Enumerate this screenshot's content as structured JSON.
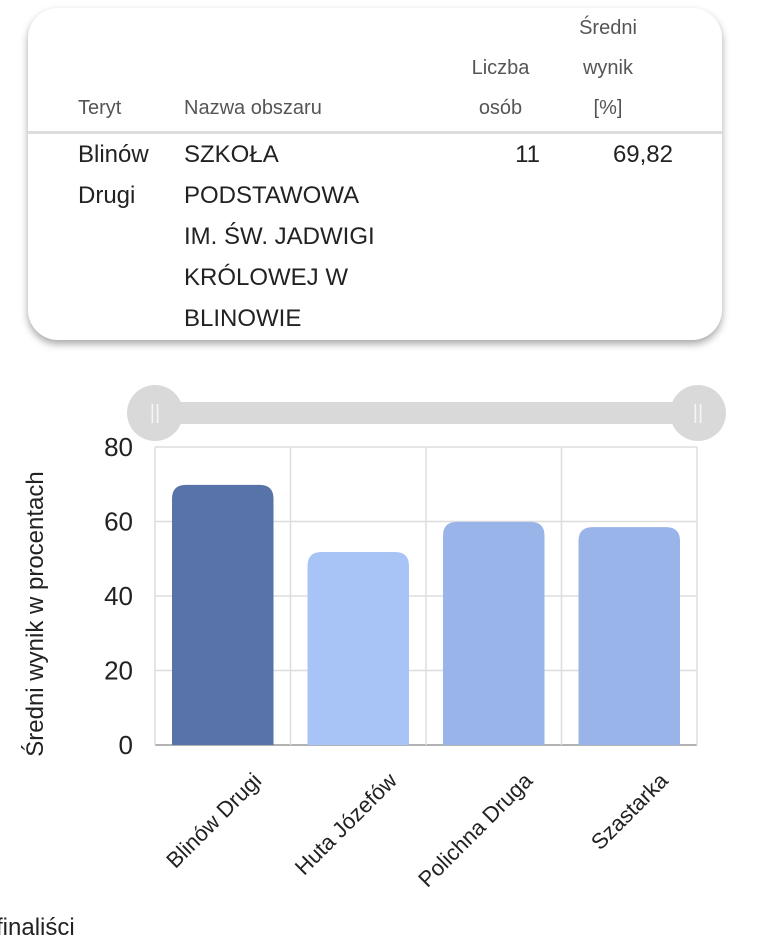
{
  "table": {
    "headers": {
      "teryt": "Teryt",
      "nazwa": "Nazwa obszaru",
      "liczba": [
        "Liczba",
        "osób"
      ],
      "sredni": [
        "Średni",
        "wynik",
        "[%]"
      ]
    },
    "row": {
      "teryt": [
        "Blinów",
        "Drugi"
      ],
      "nazwa": [
        "SZKOŁA",
        "PODSTAWOWA",
        "IM. ŚW. JADWIGI",
        "KRÓLOWEJ W",
        "BLINOWIE"
      ],
      "liczba": "11",
      "sredni": "69,82"
    }
  },
  "slider": {
    "handle_glyph": "||",
    "range": [
      0,
      1
    ]
  },
  "chart_data": {
    "type": "bar",
    "categories": [
      "Blinów Drugi",
      "Huta Józefów",
      "Polichna Druga",
      "Szastarka"
    ],
    "values": [
      69.82,
      51.8,
      59.9,
      58.5
    ],
    "colors": [
      "#5873a8",
      "#a8c4f7",
      "#99b4e8",
      "#99b4e8"
    ],
    "ylabel": "Średni wynik w procentach",
    "ylim": [
      0,
      80
    ],
    "yticks": [
      "0",
      "20",
      "40",
      "60",
      "80"
    ],
    "grid": true
  },
  "footer_text": "finaliści"
}
